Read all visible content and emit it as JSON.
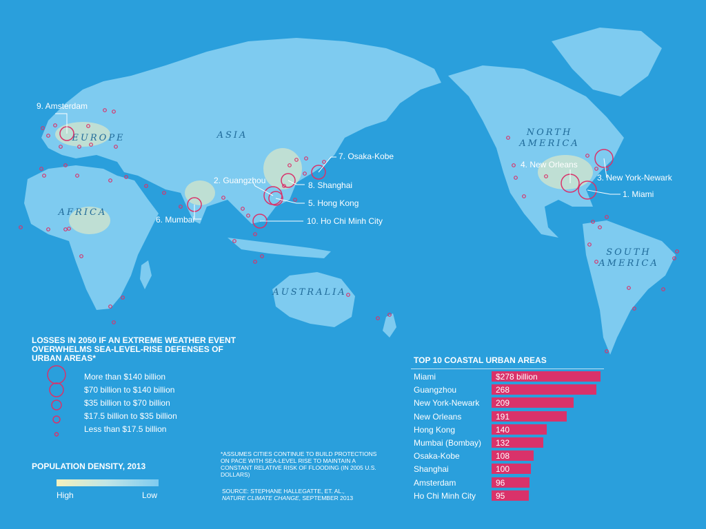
{
  "map": {
    "regions": [
      {
        "id": "north-america",
        "lines": [
          "NORTH",
          "AMERICA"
        ]
      },
      {
        "id": "europe",
        "lines": [
          "EUROPE"
        ]
      },
      {
        "id": "asia",
        "lines": [
          "ASIA"
        ]
      },
      {
        "id": "africa",
        "lines": [
          "AFRICA"
        ]
      },
      {
        "id": "south-america",
        "lines": [
          "SOUTH",
          "AMERICA"
        ]
      },
      {
        "id": "australia",
        "lines": [
          "AUSTRALIA"
        ]
      }
    ],
    "cities": [
      {
        "rank": 1,
        "label": "1. Miami",
        "tier": "more_than_140"
      },
      {
        "rank": 2,
        "label": "2. Guangzhou",
        "tier": "more_than_140"
      },
      {
        "rank": 3,
        "label": "3. New York-Newark",
        "tier": "more_than_140"
      },
      {
        "rank": 4,
        "label": "4. New Orleans",
        "tier": "more_than_140"
      },
      {
        "rank": 5,
        "label": "5. Hong Kong",
        "tier": "70_to_140"
      },
      {
        "rank": 6,
        "label": "6. Mumbai",
        "tier": "70_to_140"
      },
      {
        "rank": 7,
        "label": "7. Osaka-Kobe",
        "tier": "70_to_140"
      },
      {
        "rank": 8,
        "label": "8. Shanghai",
        "tier": "70_to_140"
      },
      {
        "rank": 9,
        "label": "9. Amsterdam",
        "tier": "70_to_140"
      },
      {
        "rank": 10,
        "label": "10. Ho Chi Minh City",
        "tier": "70_to_140"
      }
    ],
    "colors": {
      "ocean": "#2a9fdc",
      "land": "#7ecbf0",
      "dense": "#f4f1bd",
      "marker": "#d9326a",
      "region_label": "#1f6a99"
    }
  },
  "legend": {
    "title": "LOSSES IN 2050 IF AN EXTREME WEATHER EVENT OVERWHELMS SEA-LEVEL-RISE DEFENSES OF URBAN AREAS*",
    "items": [
      {
        "label": "More than $140 billion"
      },
      {
        "label": "$70 billion to $140 billion"
      },
      {
        "label": "$35 billion to $70 billion"
      },
      {
        "label": "$17.5 billion to $35 billion"
      },
      {
        "label": "Less than $17.5 billion"
      }
    ]
  },
  "population": {
    "title": "POPULATION DENSITY, 2013",
    "high": "High",
    "low": "Low"
  },
  "footnote": "*ASSUMES CITIES CONTINUE TO BUILD PROTECTIONS ON PACE WITH SEA-LEVEL RISE TO MAINTAIN A CONSTANT RELATIVE RISK OF FLOODING (IN 2005 U.S. DOLLARS)",
  "source": {
    "prefix": "SOURCE: STEPHANE HALLEGATTE, ET. AL.,",
    "journal": "NATURE CLIMATE CHANGE",
    "suffix": ", SEPTEMBER 2013"
  },
  "top10": {
    "title": "TOP 10 COASTAL URBAN AREAS",
    "rows": [
      {
        "name": "Miami",
        "value": 278,
        "value_label": "$278 billion"
      },
      {
        "name": "Guangzhou",
        "value": 268,
        "value_label": "268"
      },
      {
        "name": "New York-Newark",
        "value": 209,
        "value_label": "209"
      },
      {
        "name": "New Orleans",
        "value": 191,
        "value_label": "191"
      },
      {
        "name": "Hong Kong",
        "value": 140,
        "value_label": "140"
      },
      {
        "name": "Mumbai (Bombay)",
        "value": 132,
        "value_label": "132"
      },
      {
        "name": "Osaka-Kobe",
        "value": 108,
        "value_label": "108"
      },
      {
        "name": "Shanghai",
        "value": 100,
        "value_label": "100"
      },
      {
        "name": "Amsterdam",
        "value": 96,
        "value_label": "96"
      },
      {
        "name": "Ho Chi Minh City",
        "value": 95,
        "value_label": "95"
      }
    ]
  }
}
